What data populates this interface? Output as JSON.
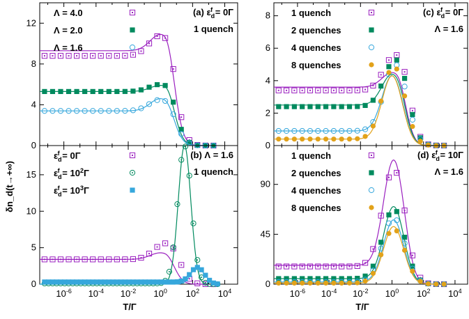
{
  "colors": {
    "purple": "#9a1fbf",
    "green": "#008a5e",
    "cyan": "#36a7dc",
    "orange": "#e2a21a"
  },
  "ylabel": "δn_d(t→+∞)",
  "xlabel": "T/Γ",
  "xticks": [
    "10^-6",
    "10^-4",
    "10^-2",
    "10^0",
    "10^2",
    "10^4"
  ],
  "chart_data": [
    {
      "type": "line",
      "panel": "(a)",
      "annotation": [
        "(a) ε_d^f = 0Γ",
        "1 quench"
      ],
      "xlim_log10": [
        -7.5,
        4.8
      ],
      "ylim": [
        0,
        14
      ],
      "yticks": [
        0,
        4,
        8,
        12
      ],
      "series": [
        {
          "name": "Λ = 4.0",
          "color": "purple",
          "marker": "open-square",
          "plateau": 8.8,
          "peak": [
            0,
            10.8
          ],
          "line_plateau": 9.3,
          "line_peak": [
            0,
            10.9
          ]
        },
        {
          "name": "Λ = 2.0",
          "color": "green",
          "marker": "filled-square",
          "plateau": 5.3,
          "peak": [
            0,
            6.0
          ],
          "line_plateau": 5.3,
          "line_peak": [
            0,
            5.9
          ]
        },
        {
          "name": "Λ = 1.6",
          "color": "cyan",
          "marker": "open-circle",
          "plateau": 3.4,
          "peak": [
            0,
            4.5
          ],
          "line_plateau": 3.4,
          "line_peak": [
            0,
            4.6
          ]
        }
      ]
    },
    {
      "type": "line",
      "panel": "(b)",
      "annotation": [
        "(b) Λ = 1.6",
        "1 quench"
      ],
      "xlim_log10": [
        -7.5,
        4.8
      ],
      "ylim": [
        0,
        19
      ],
      "yticks": [
        0,
        5,
        10,
        15
      ],
      "series": [
        {
          "name": "ε_d^f = 0Γ",
          "color": "purple",
          "marker": "open-square",
          "plateau": 3.4,
          "peak": [
            0.3,
            5.6
          ],
          "line_plateau": 3.4,
          "line_peak": [
            0,
            4.3
          ]
        },
        {
          "name": "ε_d^f = 10^2Γ",
          "color": "green",
          "marker": "open-circle-dot",
          "plateau": 0.1,
          "peak": [
            1.5,
            19
          ],
          "line_plateau": 0,
          "line_peak": [
            1.5,
            19
          ]
        },
        {
          "name": "ε_d^f = 10^3Γ",
          "color": "cyan",
          "marker": "filled-square",
          "plateau": 0.3,
          "peak": [
            2.3,
            2.3
          ],
          "line_plateau": 0,
          "line_peak": [
            2.3,
            2.4
          ]
        }
      ]
    },
    {
      "type": "line",
      "panel": "(c)",
      "annotation": [
        "(c) ε_d^f = 0Γ",
        "Λ = 1.6"
      ],
      "xlim_log10": [
        -7.5,
        4.8
      ],
      "ylim": [
        0,
        8.8
      ],
      "yticks": [
        0,
        2,
        4,
        6,
        8
      ],
      "series": [
        {
          "name": "1 quench",
          "color": "purple",
          "marker": "open-square",
          "plateau": 3.4,
          "peak": [
            0.2,
            5.6
          ],
          "line_plateau": 3.6,
          "line_peak": [
            0,
            4.5
          ]
        },
        {
          "name": "2 quenches",
          "color": "green",
          "marker": "filled-square",
          "plateau": 2.4,
          "peak": [
            0.2,
            5.3
          ],
          "line_plateau": 2.5,
          "line_peak": [
            0,
            4.4
          ]
        },
        {
          "name": "4 quenches",
          "color": "cyan",
          "marker": "open-circle",
          "plateau": 0.9,
          "peak": [
            0.2,
            5.0
          ],
          "line_plateau": 0.9,
          "line_peak": [
            0,
            4.3
          ]
        },
        {
          "name": "8 quenches",
          "color": "orange",
          "marker": "filled-circle",
          "plateau": 0.4,
          "peak": [
            0.1,
            4.9
          ],
          "line_plateau": 0.4,
          "line_peak": [
            0,
            4.3
          ]
        }
      ]
    },
    {
      "type": "line",
      "panel": "(d)",
      "annotation": [
        "(d) ε_d^f = 10Γ",
        "Λ = 1.6"
      ],
      "xlim_log10": [
        -7.5,
        4.8
      ],
      "ylim": [
        0,
        125
      ],
      "yticks": [
        0,
        45,
        90
      ],
      "series": [
        {
          "name": "1 quench",
          "color": "purple",
          "marker": "open-square",
          "plateau": 16,
          "peak": [
            0.1,
            104
          ],
          "line_plateau": 17,
          "line_peak": [
            0.1,
            112
          ]
        },
        {
          "name": "2 quenches",
          "color": "green",
          "marker": "filled-square",
          "plateau": 5,
          "peak": [
            0.1,
            68
          ],
          "line_plateau": 5,
          "line_peak": [
            0.1,
            70
          ]
        },
        {
          "name": "4 quenches",
          "color": "cyan",
          "marker": "open-circle",
          "plateau": 2,
          "peak": [
            0.1,
            60
          ],
          "line_plateau": 2,
          "line_peak": [
            0.1,
            58
          ]
        },
        {
          "name": "8 quenches",
          "color": "orange",
          "marker": "filled-circle",
          "plateau": 1,
          "peak": [
            0.1,
            50
          ],
          "line_plateau": 1,
          "line_peak": [
            0.1,
            52
          ]
        }
      ]
    }
  ]
}
